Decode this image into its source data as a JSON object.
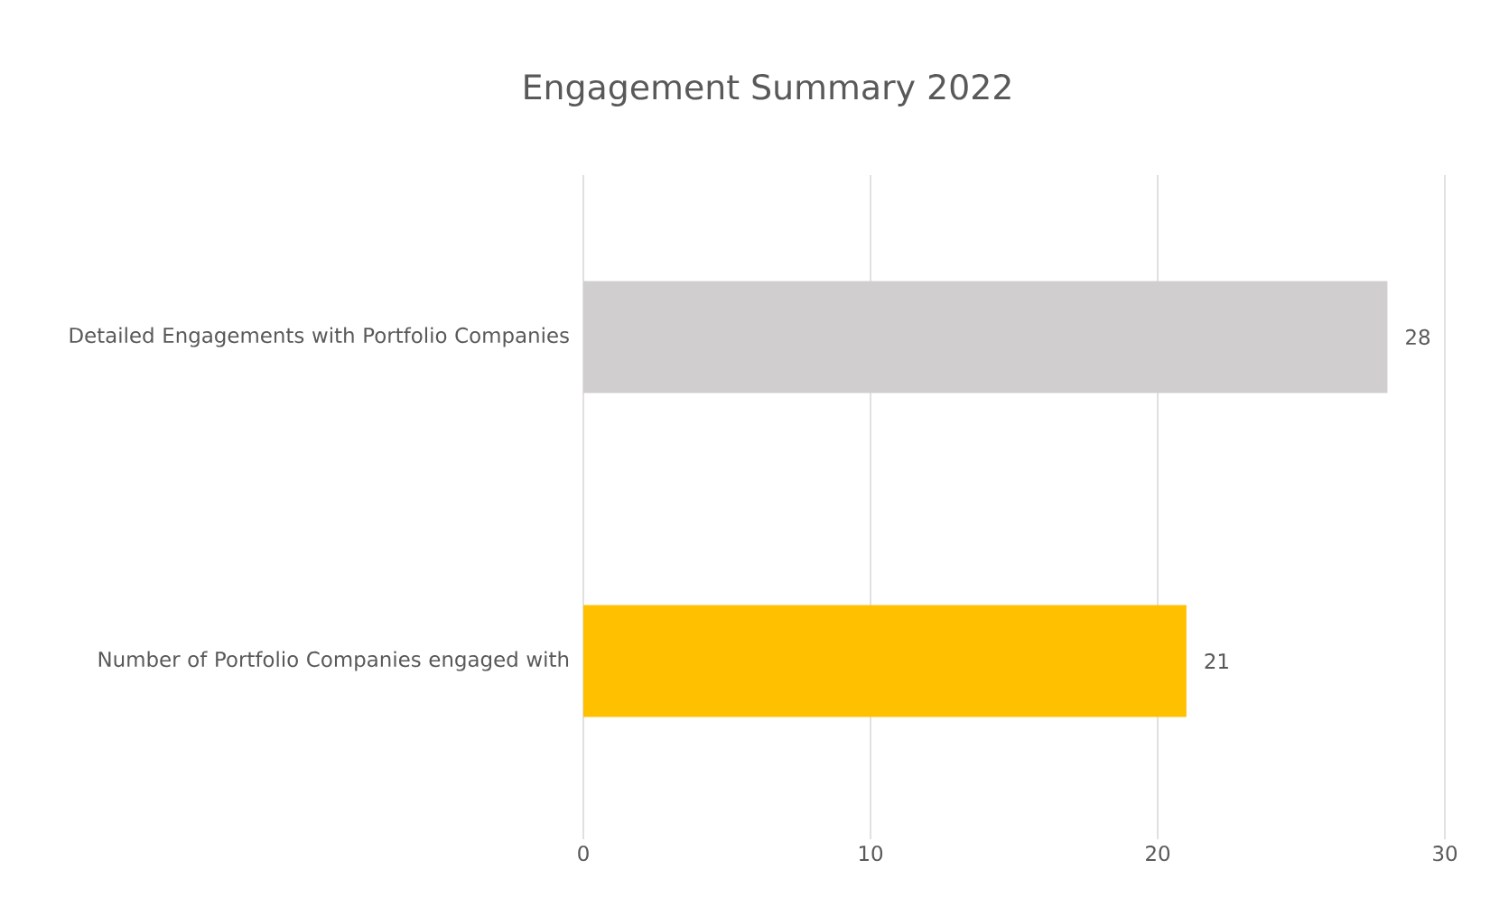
{
  "chart_data": {
    "type": "bar",
    "orientation": "horizontal",
    "title": "Engagement Summary 2022",
    "categories": [
      "Detailed Engagements with Portfolio Companies",
      "Number of Portfolio Companies engaged with"
    ],
    "values": [
      28,
      21
    ],
    "colors": [
      "#d0cece",
      "#ffc000"
    ],
    "xlim": [
      0,
      30
    ],
    "xticks": [
      0,
      10,
      20,
      30
    ],
    "grid": "x",
    "data_labels": true
  }
}
